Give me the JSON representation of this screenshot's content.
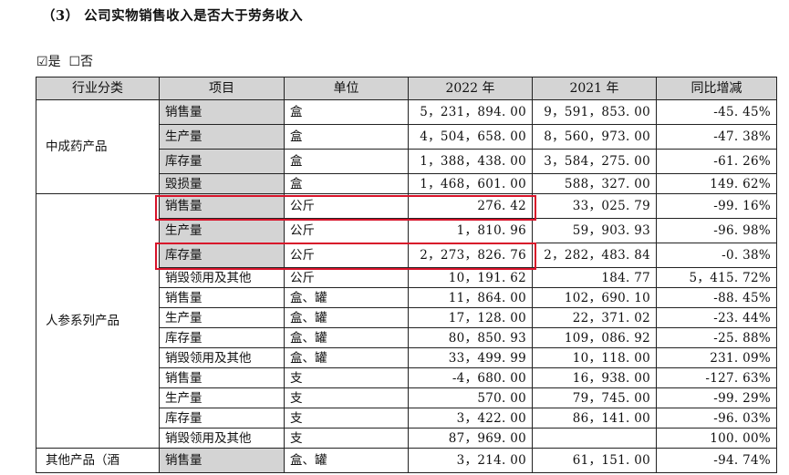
{
  "heading": "（3） 公司实物销售收入是否大于劳务收入",
  "check": {
    "yes_box": "☑",
    "yes": "是",
    "no_box": "☐",
    "no": "否"
  },
  "table": {
    "headers": [
      "行业分类",
      "项目",
      "单位",
      "2022 年",
      "2021 年",
      "同比增减"
    ],
    "groups": [
      {
        "name": "中成药产品",
        "rows": [
          {
            "item": "销售量",
            "unit": "盒",
            "y2022": "5，231，894. 00",
            "y2021": "9，591，853. 00",
            "chg": "-45. 45%"
          },
          {
            "item": "生产量",
            "unit": "盒",
            "y2022": "4，504，658. 00",
            "y2021": "8，560，973. 00",
            "chg": "-47. 38%"
          },
          {
            "item": "库存量",
            "unit": "盒",
            "y2022": "1，388，438. 00",
            "y2021": "3，584，275. 00",
            "chg": "-61. 26%"
          },
          {
            "item": "毁损量",
            "unit": "盒",
            "y2022": "1，468，601. 00",
            "y2021": "588，327. 00",
            "chg": "149. 62%"
          }
        ]
      },
      {
        "name": "人参系列产品",
        "rows": [
          {
            "item": "销售量",
            "unit": "公斤",
            "y2022": "276. 42",
            "y2021": "33，025. 79",
            "chg": "-99. 16%"
          },
          {
            "item": "生产量",
            "unit": "公斤",
            "y2022": "1，810. 96",
            "y2021": "59，903. 93",
            "chg": "-96. 98%"
          },
          {
            "item": "库存量",
            "unit": "公斤",
            "y2022": "2，273，826. 76",
            "y2021": "2，282，483. 84",
            "chg": "-0. 38%"
          },
          {
            "item": "销毁领用及其他",
            "unit": "公斤",
            "y2022": "10，191. 62",
            "y2021": "184. 77",
            "chg": "5，415. 72%"
          },
          {
            "item": "销售量",
            "unit": "盒、罐",
            "y2022": "11，864. 00",
            "y2021": "102，690. 10",
            "chg": "-88. 45%"
          },
          {
            "item": "生产量",
            "unit": "盒、罐",
            "y2022": "17，128. 00",
            "y2021": "22，371. 02",
            "chg": "-23. 44%"
          },
          {
            "item": "库存量",
            "unit": "盒、罐",
            "y2022": "80，850. 93",
            "y2021": "109，086. 92",
            "chg": "-25. 88%"
          },
          {
            "item": "销毁领用及其他",
            "unit": "盒、罐",
            "y2022": "33，499. 99",
            "y2021": "10，118. 00",
            "chg": "231. 09%"
          },
          {
            "item": "销售量",
            "unit": "支",
            "y2022": "-4，680. 00",
            "y2021": "16，938. 00",
            "chg": "-127. 63%"
          },
          {
            "item": "生产量",
            "unit": "支",
            "y2022": "570. 00",
            "y2021": "79，745. 00",
            "chg": "-99. 29%"
          },
          {
            "item": "库存量",
            "unit": "支",
            "y2022": "3，422. 00",
            "y2021": "86，141. 00",
            "chg": "-96. 03%"
          },
          {
            "item": "销毁领用及其他",
            "unit": "支",
            "y2022": "87，969. 00",
            "y2021": "",
            "chg": "100. 00%"
          }
        ]
      },
      {
        "name": "其他产品（酒",
        "rows": [
          {
            "item": "销售量",
            "unit": "盒、罐",
            "y2022": "3，214. 00",
            "y2021": "61，151. 00",
            "chg": "-94. 74%"
          }
        ]
      }
    ]
  }
}
